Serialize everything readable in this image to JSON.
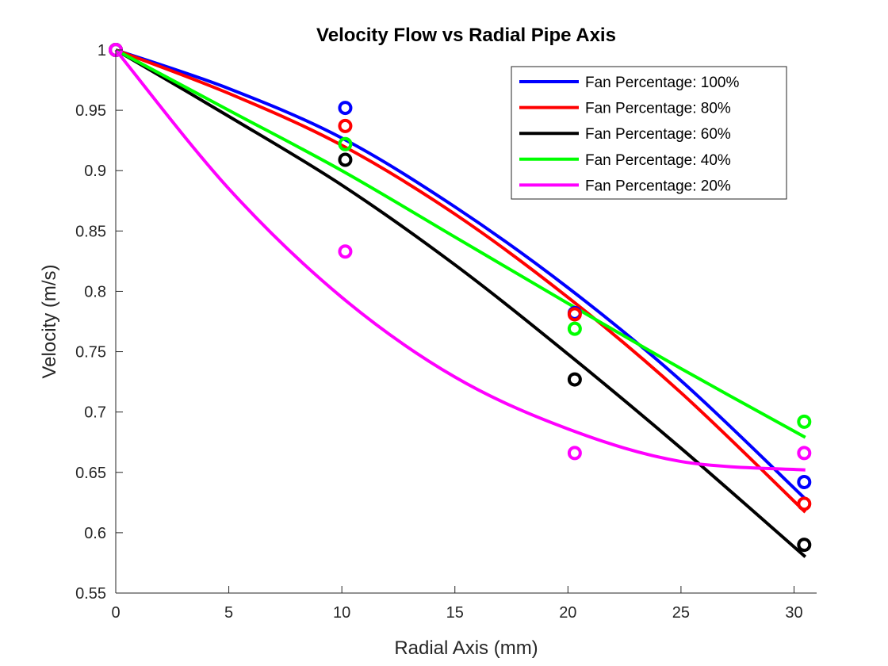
{
  "chart_data": {
    "type": "line",
    "title": "Velocity Flow vs Radial Pipe Axis",
    "xlabel": "Radial Axis (mm)",
    "ylabel": "Velocity (m/s)",
    "xlim": [
      0,
      31
    ],
    "ylim": [
      0.55,
      1.0
    ],
    "xticks": [
      0,
      5,
      10,
      15,
      20,
      25,
      30
    ],
    "xtick_labels": [
      "0",
      "5",
      "10",
      "15",
      "20",
      "25",
      "30"
    ],
    "yticks": [
      0.55,
      0.6,
      0.65,
      0.7,
      0.75,
      0.8,
      0.85,
      0.9,
      0.95,
      1.0
    ],
    "ytick_labels": [
      "0.55",
      "0.6",
      "0.65",
      "0.7",
      "0.75",
      "0.8",
      "0.85",
      "0.9",
      "0.95",
      "1"
    ],
    "grid": false,
    "legend_position": "top-right",
    "series": [
      {
        "name": "Fan Percentage: 100%",
        "color": "#0000ff",
        "points_x": [
          0,
          10.15,
          20.3,
          30.45
        ],
        "points_y": [
          1.0,
          0.952,
          0.782,
          0.642
        ],
        "fit_x": [
          0,
          5,
          10,
          15,
          20,
          25,
          30.5
        ],
        "fit_y": [
          1.0,
          0.968,
          0.927,
          0.87,
          0.803,
          0.726,
          0.628
        ]
      },
      {
        "name": "Fan Percentage: 80%",
        "color": "#ff0000",
        "points_x": [
          0,
          10.15,
          20.3,
          30.45
        ],
        "points_y": [
          1.0,
          0.937,
          0.781,
          0.624
        ],
        "fit_x": [
          0,
          5,
          10,
          15,
          20,
          25,
          30.5
        ],
        "fit_y": [
          1.0,
          0.964,
          0.921,
          0.864,
          0.795,
          0.716,
          0.617
        ]
      },
      {
        "name": "Fan Percentage: 60%",
        "color": "#000000",
        "points_x": [
          0,
          10.15,
          20.3,
          30.45
        ],
        "points_y": [
          1.0,
          0.909,
          0.727,
          0.59
        ],
        "fit_x": [
          0,
          5,
          10,
          15,
          20,
          25,
          30.5
        ],
        "fit_y": [
          1.0,
          0.945,
          0.888,
          0.822,
          0.748,
          0.67,
          0.58
        ]
      },
      {
        "name": "Fan Percentage: 40%",
        "color": "#00ff00",
        "points_x": [
          0,
          10.15,
          20.3,
          30.45
        ],
        "points_y": [
          1.0,
          0.922,
          0.769,
          0.692
        ],
        "fit_x": [
          0,
          5,
          10,
          15,
          20,
          25,
          30.5
        ],
        "fit_y": [
          1.0,
          0.95,
          0.9,
          0.845,
          0.79,
          0.736,
          0.679
        ]
      },
      {
        "name": "Fan Percentage: 20%",
        "color": "#ff00ff",
        "points_x": [
          0,
          10.15,
          20.3,
          30.45
        ],
        "points_y": [
          1.0,
          0.833,
          0.666,
          0.666
        ],
        "fit_x": [
          0,
          5,
          10,
          15,
          20,
          25,
          30.5
        ],
        "fit_y": [
          1.0,
          0.885,
          0.795,
          0.729,
          0.686,
          0.659,
          0.652
        ]
      }
    ]
  }
}
